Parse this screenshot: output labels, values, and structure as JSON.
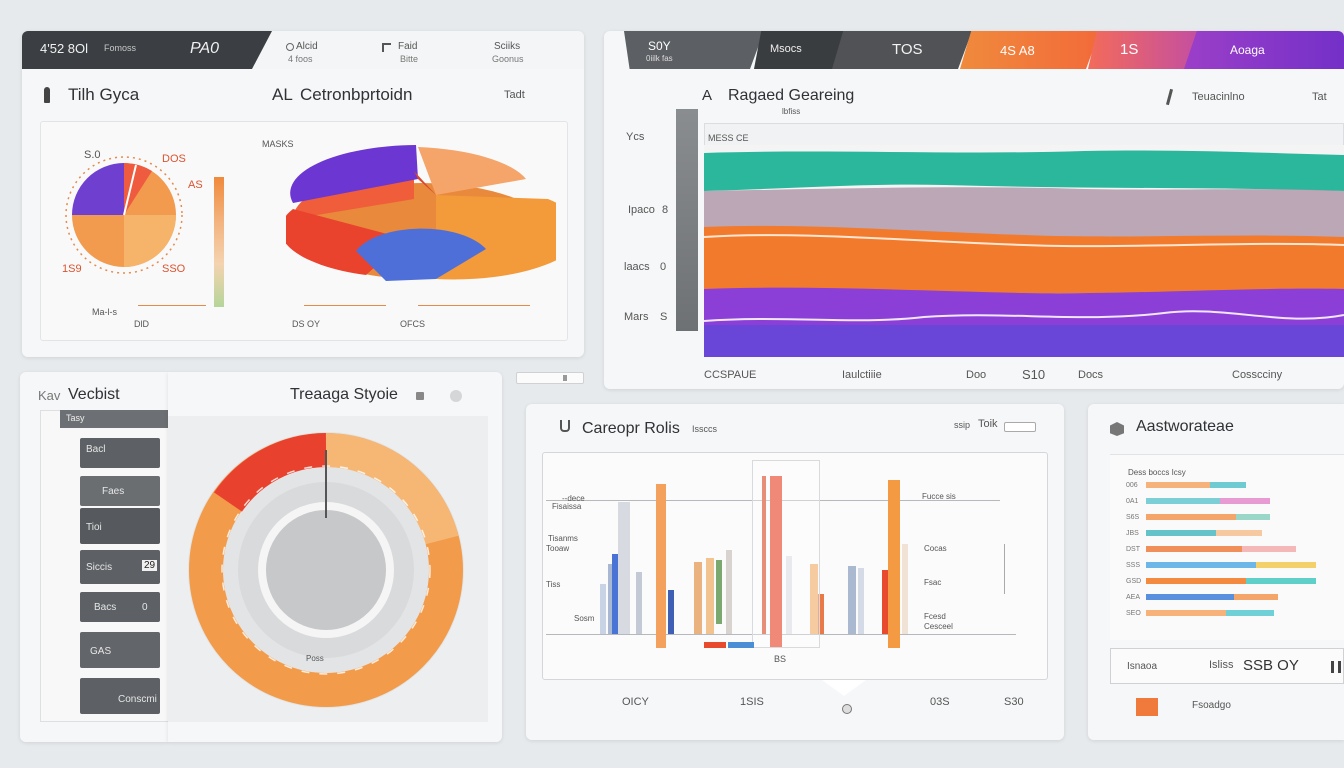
{
  "colors": {
    "orange": "#f08a3c",
    "purple": "#7a3fcf",
    "red": "#e84b3a",
    "blue": "#4a72d9",
    "teal": "#2ab59a",
    "dark": "#3d4043"
  },
  "panel1": {
    "header": {
      "left": "4'52 8Ol",
      "left_sub": "Fomoss",
      "value": "PA0",
      "item2": "Alcid",
      "item2_sub": "4 foos",
      "item3": "Faid",
      "item3_sub": "Bitte",
      "item4": "Sciiks",
      "item4_sub": "Goonus"
    },
    "sub_left": "Tilh Gyca",
    "sub_center": "Cetronbprtoidn",
    "sub_center_prefix": "AL",
    "sub_right": "Tadt",
    "pie_top": "S.0",
    "pie_label_tr": "DOS",
    "pie_label_r": "AS",
    "pie_label_bl": "1S9",
    "pie_label_br": "SSO",
    "label_masks": "MASKS",
    "foot1": "Ma-l-s",
    "foot2": "DlD",
    "foot3": "DS OY",
    "foot4": "OFCS"
  },
  "panel2": {
    "tabs": [
      "S0Y",
      "Msocs",
      "TOS",
      "4S A8",
      "1S",
      "Aoaga"
    ],
    "tab1_sub": "0iilk fas",
    "title_prefix": "A",
    "title": "Ragaed Geareing",
    "title_sub": "lbfiss",
    "right1": "Teuacinlno",
    "right2": "Tat",
    "inner_label": "MESS CE",
    "y_labels": [
      "Ycs",
      "Ipaco",
      "laacs",
      "Mars"
    ],
    "y_values": [
      "",
      "8",
      "0",
      "S"
    ],
    "x_labels": [
      "CCSPAUE",
      "Iaulctiiie",
      "Doo",
      "S10",
      "Docs",
      "Cosscciny"
    ]
  },
  "panel3": {
    "title_prefix": "Kav",
    "title": "Vecbist",
    "header_label": "Tasy",
    "tiles": [
      "Bacl",
      "Faes",
      "Tioi",
      "Siccis",
      "Bacs",
      "GAS",
      "Conscmi"
    ],
    "tile_values": [
      "",
      "",
      "",
      "29",
      "0",
      "",
      ""
    ]
  },
  "panel4": {
    "title": "Treaaga Styoie",
    "center_label": "Poss"
  },
  "panel5": {
    "title": "Careopr Rolis",
    "title_sub": "Issccs",
    "right_label": "ssip",
    "right_value": "Toik",
    "x_labels": [
      "OICY",
      "1SIS",
      "03S",
      "S30"
    ],
    "legend_left": [
      "--dece",
      "Fisaissa",
      "Tisanms",
      "Tooaw",
      "Tiss",
      "Sosm"
    ],
    "legend_right": [
      "Fucce sis",
      "Cocas",
      "Fsac",
      "Fcesd",
      "Cesceel"
    ],
    "axis_tag": "BS"
  },
  "panel6": {
    "title": "Aastworateae",
    "head": "Dess boccs Icsy",
    "rows": [
      "006",
      "0A1",
      "S6S",
      "JBS",
      "DST",
      "SSS",
      "GSD",
      "AEA",
      "SEO"
    ],
    "footer_label": "Isnaoa",
    "footer_mid": "Isliss",
    "footer_value": "SSB OY",
    "footer_sub": "Fsoadgo"
  }
}
